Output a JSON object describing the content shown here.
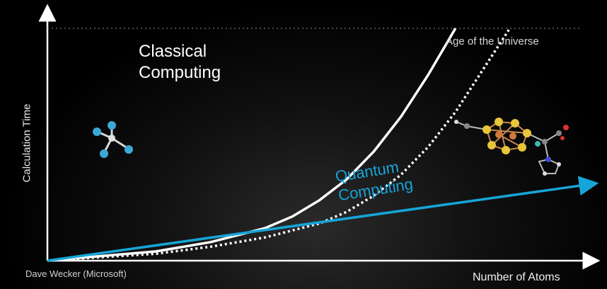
{
  "chart_data": {
    "type": "line",
    "title": "",
    "xlabel": "Number of Atoms",
    "ylabel": "Calculation Time",
    "xlim": [
      0,
      100
    ],
    "ylim": [
      0,
      100
    ],
    "grid": false,
    "series": [
      {
        "name": "Classical Computing",
        "style": "solid",
        "color": "#ffffff",
        "x": [
          0,
          10,
          20,
          30,
          40,
          45,
          50,
          55,
          60,
          65,
          70,
          75
        ],
        "y": [
          0,
          2,
          4,
          8,
          14,
          19,
          26,
          35,
          47,
          62,
          80,
          100
        ]
      },
      {
        "name": "",
        "style": "dotted",
        "color": "#ffffff",
        "x": [
          0,
          10,
          20,
          30,
          40,
          50,
          55,
          60,
          65,
          70,
          75,
          80,
          85
        ],
        "y": [
          0,
          1.5,
          3,
          6,
          10,
          16,
          21,
          28,
          37,
          49,
          64,
          82,
          100
        ]
      },
      {
        "name": "Quantum Computing",
        "style": "solid",
        "color": "#16a5d8",
        "x": [
          0,
          100
        ],
        "y": [
          0,
          33
        ]
      }
    ],
    "reference_lines": [
      {
        "label": "Age of the Universe",
        "y": 100,
        "style": "dotted"
      }
    ],
    "annotations": [
      "Dave Wecker (Microsoft)"
    ]
  },
  "colors": {
    "quantum": "#16a5d8",
    "classical": "#ffffff",
    "axis": "#ffffff",
    "background": "#000000"
  },
  "icons": {
    "small_molecule": "tetrahedral-molecule-icon",
    "large_molecule": "metal-cluster-molecule-icon"
  }
}
